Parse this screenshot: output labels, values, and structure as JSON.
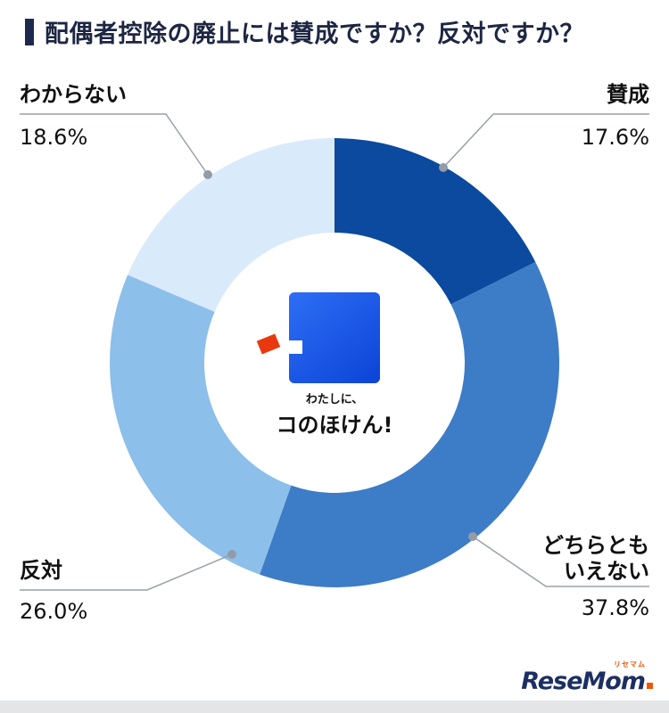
{
  "header": {
    "title": "配偶者控除の廃止には賛成ですか？反対ですか？"
  },
  "chart_data": {
    "type": "pie",
    "style": "donut",
    "title": "配偶者控除の廃止には賛成ですか？反対ですか？",
    "categories": [
      "賛成",
      "どちらともいえない",
      "反対",
      "わからない"
    ],
    "values": [
      17.6,
      37.8,
      26.0,
      18.6
    ],
    "unit": "%",
    "colors": [
      "#0b4a9e",
      "#3d7cc7",
      "#8cbfe9",
      "#d9eafb"
    ],
    "start_angle_deg": 0,
    "direction": "clockwise",
    "inner_radius_ratio": 0.58,
    "legend": "none",
    "labels": [
      {
        "name": "賛成",
        "name_display": "賛成",
        "value_text": "17.6%"
      },
      {
        "name": "どちらともいえない",
        "name_display": "どちらとも\nいえない",
        "value_text": "37.8%"
      },
      {
        "name": "反対",
        "name_display": "反対",
        "value_text": "26.0%"
      },
      {
        "name": "わからない",
        "name_display": "わからない",
        "value_text": "18.6%"
      }
    ]
  },
  "center_logo": {
    "tagline": "わたしに、",
    "brand": "コのほけん!"
  },
  "footer": {
    "brand": "ReseMom",
    "brand_small": "リセマム"
  }
}
